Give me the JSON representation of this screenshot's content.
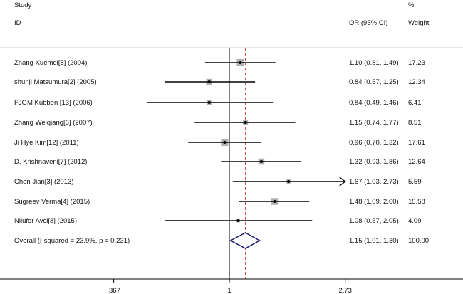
{
  "chart_data": {
    "type": "forest",
    "headers": {
      "study_top": "Study",
      "study": "ID",
      "or": "OR (95% CI)",
      "weight_top": "%",
      "weight": "Weight"
    },
    "scale": "log",
    "null_value": 1,
    "x_ticks": [
      0.367,
      1,
      2.73
    ],
    "x_tick_labels": [
      ".367",
      "1",
      "2.73"
    ],
    "xlim": [
      0.24,
      4.2
    ],
    "studies": [
      {
        "label": "Zhang Xuemei[5] (2004)",
        "or": 1.1,
        "lo": 0.81,
        "hi": 1.49,
        "or_text": "1.10 (0.81, 1.49)",
        "weight": 17.23,
        "weight_text": "17.23"
      },
      {
        "label": "shunji Matsumura[2] (2005)",
        "or": 0.84,
        "lo": 0.57,
        "hi": 1.25,
        "or_text": "0.84 (0.57, 1.25)",
        "weight": 12.34,
        "weight_text": "12.34"
      },
      {
        "label": "FJGM Kubben [13] (2006)",
        "or": 0.84,
        "lo": 0.49,
        "hi": 1.46,
        "or_text": "0.84 (0.49, 1.46)",
        "weight": 6.41,
        "weight_text": "6.41"
      },
      {
        "label": "Zhang Weiqiang[6] (2007)",
        "or": 1.15,
        "lo": 0.74,
        "hi": 1.77,
        "or_text": "1.15 (0.74, 1.77)",
        "weight": 8.51,
        "weight_text": "8.51"
      },
      {
        "label": "Ji Hye Kim[12] (2011)",
        "or": 0.96,
        "lo": 0.7,
        "hi": 1.32,
        "or_text": "0.96 (0.70, 1.32)",
        "weight": 17.61,
        "weight_text": "17.61"
      },
      {
        "label": "D. Krishnaveni[7] (2012)",
        "or": 1.32,
        "lo": 0.93,
        "hi": 1.86,
        "or_text": "1.32 (0.93, 1.86)",
        "weight": 12.64,
        "weight_text": "12.64"
      },
      {
        "label": "Chen Jian[3] (2013)",
        "or": 1.67,
        "lo": 1.03,
        "hi": 2.73,
        "or_text": "1.67 (1.03, 2.73)",
        "weight": 5.59,
        "weight_text": "5.59",
        "arrow": true
      },
      {
        "label": "Sugreev Verma[4] (2015)",
        "or": 1.48,
        "lo": 1.09,
        "hi": 2.0,
        "or_text": "1.48 (1.09, 2.00)",
        "weight": 15.58,
        "weight_text": "15.58"
      },
      {
        "label": "Nilufer Avci[8] (2015)",
        "or": 1.08,
        "lo": 0.57,
        "hi": 2.05,
        "or_text": "1.08 (0.57, 2.05)",
        "weight": 4.09,
        "weight_text": "4.09"
      }
    ],
    "overall": {
      "label": "Overall  (I-squared = 23.9%, p = 0.231)",
      "or": 1.15,
      "lo": 1.01,
      "hi": 1.3,
      "or_text": "1.15 (1.01, 1.30)",
      "weight_text": "100.00"
    },
    "colors": {
      "diamond": "#1a1a6e",
      "pooled_line": "#c0392b",
      "box": "#b0b0b0",
      "line": "#000000"
    }
  }
}
